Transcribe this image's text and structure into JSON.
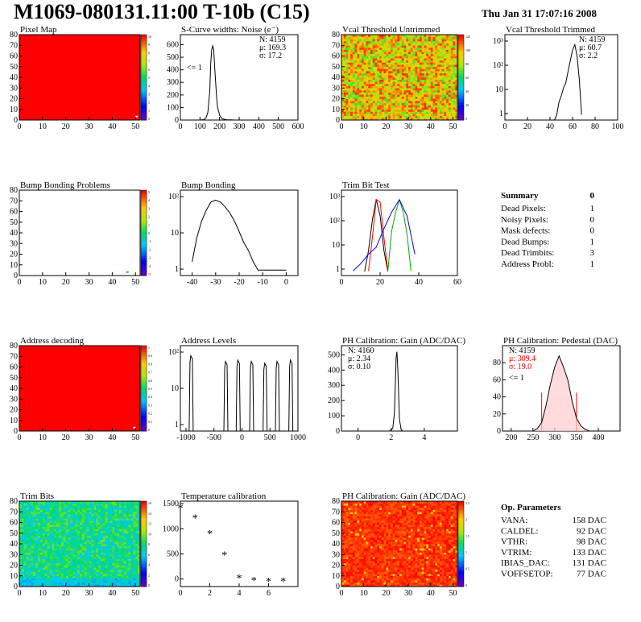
{
  "header": {
    "title": "M1069-080131.11:00 T-10b (C15)",
    "date": "Thu Jan 31 17:07:16 2008"
  },
  "chart_data": [
    {
      "id": "pixel-map",
      "type": "heatmap",
      "title": "Pixel Map",
      "xlim": [
        0,
        52
      ],
      "ylim": [
        0,
        80
      ],
      "xticks": [
        0,
        10,
        20,
        30,
        40,
        50
      ],
      "yticks": [
        0,
        10,
        20,
        30,
        40,
        50,
        60,
        70,
        80
      ],
      "fill": "#ff0000",
      "marks": [
        {
          "x": 50,
          "y": 4,
          "color": "#ffffff"
        }
      ],
      "palette_ticks": [
        "10",
        "9",
        "8",
        "7",
        "6",
        "5",
        "4",
        "3",
        "2",
        "1",
        "0"
      ],
      "palette_top": 10
    },
    {
      "id": "scurve-noise",
      "type": "line",
      "title": "S-Curve widths: Noise (e⁻)",
      "xlim": [
        0,
        600
      ],
      "ylim": [
        0,
        680
      ],
      "xticks": [
        0,
        100,
        200,
        300,
        400,
        500,
        600
      ],
      "yticks": [
        0,
        100,
        200,
        300,
        400,
        500,
        600
      ],
      "stats": [
        "N: 4159",
        "μ: 169.3",
        "σ: 17.2"
      ],
      "note": "<= 1",
      "x": [
        100,
        110,
        120,
        130,
        140,
        150,
        155,
        160,
        165,
        170,
        175,
        180,
        185,
        190,
        200,
        210,
        220,
        230,
        240,
        260,
        280,
        300
      ],
      "y": [
        0,
        2,
        5,
        15,
        60,
        230,
        450,
        560,
        590,
        560,
        420,
        300,
        180,
        100,
        40,
        15,
        8,
        4,
        2,
        1,
        0,
        0
      ]
    },
    {
      "id": "vcal-untrimmed",
      "type": "heatmap",
      "title": "Vcal Threshold Untrimmed",
      "xlim": [
        0,
        52
      ],
      "ylim": [
        0,
        80
      ],
      "xticks": [
        0,
        10,
        20,
        30,
        40,
        50
      ],
      "yticks": [
        0,
        10,
        20,
        30,
        40,
        50,
        60,
        70,
        80
      ],
      "palette_ticks": [
        "120",
        "100",
        "80",
        "60",
        "40",
        "20",
        "0"
      ],
      "palette_top": 130
    },
    {
      "id": "vcal-trimmed",
      "type": "line",
      "title": "Vcal Threshold Trimmed",
      "xlim": [
        0,
        100
      ],
      "log_y": true,
      "xticks": [
        0,
        20,
        40,
        60,
        80,
        100
      ],
      "yticks": [
        "10³",
        "10²",
        "10",
        "1"
      ],
      "stats": [
        "N: 4159",
        "μ: 60.7",
        "σ:  2.2"
      ],
      "x": [
        44,
        46,
        48,
        50,
        52,
        54,
        56,
        58,
        60,
        62,
        64,
        66,
        68
      ],
      "y": [
        0,
        1,
        3,
        5,
        10,
        15,
        40,
        100,
        250,
        400,
        150,
        20,
        1
      ]
    },
    {
      "id": "bump-problems",
      "type": "heatmap",
      "title": "Bump Bonding Problems",
      "xlim": [
        0,
        52
      ],
      "ylim": [
        0,
        80
      ],
      "xticks": [
        0,
        10,
        20,
        30,
        40,
        50
      ],
      "yticks": [
        0,
        10,
        20,
        30,
        40,
        50,
        60,
        70,
        80
      ],
      "fill": "#ffffff",
      "marks": [
        {
          "x": 46,
          "y": 4,
          "color": "#22cc22"
        }
      ],
      "palette_ticks": [
        "5",
        "4",
        "3",
        "2",
        "1",
        "0",
        "-1",
        "-2",
        "-3",
        "-4",
        "-5"
      ],
      "palette_top": 5
    },
    {
      "id": "bump-bonding",
      "type": "line",
      "title": "Bump Bonding",
      "xlim": [
        -45,
        5
      ],
      "log_y": true,
      "xticks": [
        -40,
        -30,
        -20,
        -10,
        0
      ],
      "yticks": [
        "10²",
        "10",
        "1"
      ],
      "x": [
        -40,
        -38,
        -36,
        -34,
        -32,
        -30,
        -28,
        -26,
        -24,
        -22,
        -20,
        -18,
        -16,
        -14,
        -12,
        -10,
        0
      ],
      "y": [
        2,
        15,
        60,
        150,
        300,
        350,
        300,
        200,
        120,
        60,
        25,
        10,
        5,
        2,
        1,
        1,
        1
      ]
    },
    {
      "id": "trim-bit-test",
      "type": "line",
      "title": "Trim Bit Test",
      "xlim": [
        0,
        60
      ],
      "log_y": true,
      "xticks": [
        0,
        20,
        40,
        60
      ],
      "yticks": [
        "10³",
        "10²",
        "10",
        "1"
      ],
      "series": [
        {
          "color": "#000000",
          "x": [
            12,
            14,
            16,
            18,
            20,
            22,
            24
          ],
          "y": [
            1,
            10,
            300,
            3000,
            500,
            10,
            1
          ]
        },
        {
          "color": "#ff0000",
          "x": [
            14,
            16,
            18,
            20,
            22,
            24
          ],
          "y": [
            1,
            30,
            1500,
            1200,
            30,
            1
          ]
        },
        {
          "color": "#00aa00",
          "x": [
            24,
            26,
            28,
            30,
            32,
            34,
            36
          ],
          "y": [
            1,
            60,
            400,
            1500,
            400,
            40,
            1
          ]
        },
        {
          "color": "#0000ff",
          "x": [
            6,
            10,
            14,
            18,
            22,
            26,
            30,
            34,
            38
          ],
          "y": [
            1,
            2,
            5,
            10,
            60,
            300,
            1000,
            200,
            5
          ]
        }
      ]
    },
    {
      "id": "address-decoding",
      "type": "heatmap",
      "title": "Address decoding",
      "xlim": [
        0,
        52
      ],
      "ylim": [
        0,
        80
      ],
      "xticks": [
        0,
        10,
        20,
        30,
        40,
        50
      ],
      "yticks": [
        0,
        10,
        20,
        30,
        40,
        50,
        60,
        70,
        80
      ],
      "fill": "#ff0000",
      "marks": [
        {
          "x": 49,
          "y": 4,
          "color": "#ffffff"
        }
      ],
      "palette_ticks": [
        "1",
        "0.9",
        "0.8",
        "0.7",
        "0.6",
        "0.5",
        "0.4",
        "0.3",
        "0.2",
        "0.1",
        "0"
      ],
      "palette_top": 1
    },
    {
      "id": "address-levels",
      "type": "line",
      "title": "Address Levels",
      "xlim": [
        -1100,
        1000
      ],
      "log_y": true,
      "xticks": [
        -1000,
        -500,
        0,
        500,
        1000
      ],
      "yticks": [
        "10²",
        "10",
        "1"
      ],
      "peaks": [
        -900,
        -280,
        -60,
        180,
        420,
        640,
        880
      ],
      "peak_heights": [
        600,
        350,
        400,
        350,
        300,
        350,
        400
      ]
    },
    {
      "id": "ph-gain-hist",
      "type": "line",
      "title": "PH Calibration: Gain (ADC/DAC)",
      "xlim": [
        -1,
        6
      ],
      "ylim": [
        0,
        560
      ],
      "xticks": [
        0,
        2,
        4
      ],
      "yticks": [
        0,
        100,
        200,
        300,
        400,
        500
      ],
      "stats": [
        "N: 4160",
        "μ: 2.34",
        "σ: 0.10"
      ],
      "x": [
        1.9,
        2.0,
        2.1,
        2.2,
        2.25,
        2.3,
        2.35,
        2.4,
        2.45,
        2.5,
        2.6,
        2.7
      ],
      "y": [
        0,
        5,
        20,
        120,
        300,
        480,
        520,
        420,
        250,
        80,
        10,
        0
      ]
    },
    {
      "id": "ph-pedestal",
      "type": "line",
      "title": "PH Calibration: Pedestal (DAC)",
      "xlim": [
        180,
        450
      ],
      "ylim": [
        0,
        100
      ],
      "xticks": [
        200,
        250,
        300,
        350,
        400
      ],
      "yticks": [
        0,
        20,
        40,
        60,
        80
      ],
      "stats": [
        "N: 4159",
        "μ: 309.4",
        "σ: 19.0"
      ],
      "stats_colors": [
        "#000000",
        "#ff0000",
        "#ff0000"
      ],
      "note": "<= 1",
      "cut_lines": [
        270,
        350
      ],
      "x": [
        250,
        260,
        270,
        280,
        290,
        300,
        310,
        320,
        330,
        340,
        350,
        360,
        370,
        380
      ],
      "y": [
        0,
        3,
        10,
        30,
        55,
        75,
        88,
        75,
        60,
        35,
        15,
        6,
        2,
        0
      ]
    },
    {
      "id": "trim-bits",
      "type": "heatmap",
      "title": "Trim Bits",
      "xlim": [
        0,
        52
      ],
      "ylim": [
        0,
        80
      ],
      "xticks": [
        0,
        10,
        20,
        30,
        40,
        50
      ],
      "yticks": [
        0,
        10,
        20,
        30,
        40,
        50,
        60,
        70,
        80
      ],
      "palette_ticks": [
        "16",
        "14",
        "12",
        "10",
        "8",
        "6",
        "4",
        "2",
        "0"
      ],
      "palette_top": 16
    },
    {
      "id": "temperature-calibration",
      "type": "scatter",
      "title": "Temperature calibration",
      "xlim": [
        0,
        8
      ],
      "ylim": [
        -150,
        1550
      ],
      "xticks": [
        0,
        2,
        4,
        6
      ],
      "yticks": [
        0,
        500,
        1000,
        1500
      ],
      "x": [
        0,
        1,
        2,
        3,
        4,
        5,
        6,
        7
      ],
      "y": [
        1420,
        1220,
        910,
        480,
        30,
        -20,
        -40,
        -40
      ]
    },
    {
      "id": "ph-gain-map",
      "type": "heatmap",
      "title": "PH Calibration: Gain (ADC/DAC)",
      "xlim": [
        0,
        52
      ],
      "ylim": [
        0,
        80
      ],
      "xticks": [
        0,
        10,
        20,
        30,
        40,
        50
      ],
      "yticks": [
        0,
        10,
        20,
        30,
        40,
        50,
        60,
        70,
        80
      ],
      "palette_ticks": [
        "2.5",
        "2",
        "1.5",
        "1",
        "0.5",
        "0"
      ],
      "palette_top": 2.6
    }
  ],
  "summary": {
    "heading": "Summary",
    "value": "0",
    "rows": [
      {
        "label": "Dead Pixels:",
        "value": "1"
      },
      {
        "label": "Noisy Pixels:",
        "value": "0"
      },
      {
        "label": "Mask defects:",
        "value": "0"
      },
      {
        "label": "Dead Bumps:",
        "value": "1"
      },
      {
        "label": "Dead Trimbits:",
        "value": "3"
      },
      {
        "label": "Address Probl:",
        "value": "1"
      }
    ]
  },
  "op_params": {
    "heading": "Op. Parameters",
    "rows": [
      {
        "label": "VANA:",
        "value": "158 DAC"
      },
      {
        "label": "CALDEL:",
        "value": "92 DAC"
      },
      {
        "label": "VTHR:",
        "value": "98 DAC"
      },
      {
        "label": "VTRIM:",
        "value": "133 DAC"
      },
      {
        "label": "IBIAS_DAC:",
        "value": "131 DAC"
      },
      {
        "label": "VOFFSETOP:",
        "value": "77 DAC"
      }
    ]
  }
}
